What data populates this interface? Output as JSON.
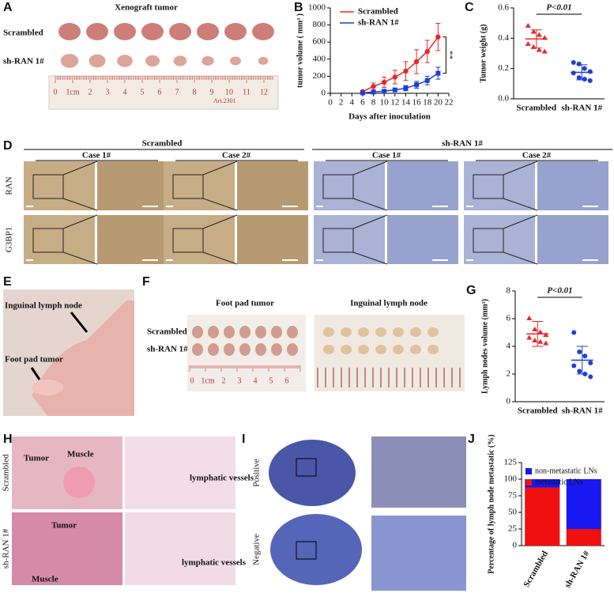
{
  "panels": {
    "A": {
      "label": "A",
      "title": "Xenograft tumor",
      "rows": [
        "Scrambled",
        "sh-RAN 1#"
      ],
      "ruler": [
        "0",
        "1cm",
        "2",
        "3",
        "4",
        "5",
        "6",
        "7",
        "8",
        "9",
        "10",
        "11",
        "12"
      ],
      "ruler_brand": "Art.2301"
    },
    "D": {
      "label": "D",
      "groups": [
        "Scrambled",
        "sh-RAN 1#"
      ],
      "cases": [
        "Case 1#",
        "Case 2#",
        "Case 1#",
        "Case 2#"
      ],
      "rows": [
        "RAN",
        "G3BP1"
      ]
    },
    "E": {
      "label": "E",
      "annotations": [
        "Inguinal lymph node",
        "Foot pad tumor"
      ]
    },
    "F": {
      "label": "F",
      "columns": [
        "Foot pad tumor",
        "Inguinal lymph node"
      ],
      "rows": [
        "Scrambled",
        "sh-RAN 1#"
      ],
      "ruler": [
        "0",
        "1cm",
        "2",
        "3",
        "4",
        "5",
        "6"
      ]
    },
    "H": {
      "label": "H",
      "rows": [
        "Scrambled",
        "sh-RAN 1#"
      ],
      "annotations": [
        "Tumor",
        "Muscle",
        "lymphatic vessels",
        "Tumor",
        "Muscle",
        "lymphatic vessels"
      ]
    },
    "I": {
      "label": "I",
      "rows": [
        "Positive",
        "Negative"
      ]
    }
  },
  "chart_data": [
    {
      "type": "line",
      "label": "B",
      "xlabel": "Days after inoculation",
      "ylabel": "tumor volume ( mm³ )",
      "x": [
        6,
        8,
        10,
        12,
        14,
        16,
        18,
        20
      ],
      "series": [
        {
          "name": "Scrambled",
          "color": "#e8262a",
          "marker": "circle",
          "values": [
            20,
            80,
            130,
            190,
            260,
            370,
            490,
            660
          ],
          "errors": [
            10,
            40,
            60,
            80,
            110,
            140,
            130,
            160
          ]
        },
        {
          "name": "sh-RAN 1#",
          "color": "#1f3fd6",
          "marker": "square",
          "values": [
            5,
            15,
            25,
            40,
            60,
            100,
            150,
            235
          ],
          "errors": [
            5,
            10,
            15,
            20,
            30,
            40,
            50,
            70
          ]
        }
      ],
      "xlim": [
        0,
        22
      ],
      "xticks": [
        0,
        2,
        4,
        6,
        8,
        10,
        12,
        14,
        16,
        18,
        20,
        22
      ],
      "ylim": [
        0,
        1000
      ],
      "yticks": [
        0,
        200,
        400,
        600,
        800,
        1000
      ],
      "annotation": "**"
    },
    {
      "type": "dot",
      "label": "C",
      "ylabel": "Tumor weight (g)",
      "categories": [
        "Scrambled",
        "sh-RAN 1#"
      ],
      "groups": [
        {
          "color": "#e8262a",
          "values": [
            0.48,
            0.44,
            0.42,
            0.4,
            0.36,
            0.34,
            0.32,
            0.31
          ],
          "mean": 0.395,
          "sd": 0.06
        },
        {
          "color": "#1f3fd6",
          "values": [
            0.24,
            0.23,
            0.2,
            0.18,
            0.17,
            0.14,
            0.13,
            0.12
          ],
          "mean": 0.175,
          "sd": 0.05
        }
      ],
      "ylim": [
        0,
        0.6
      ],
      "yticks": [
        {
          "value": 0,
          "label": "0.0"
        },
        0.2,
        0.4,
        0.6
      ],
      "annotation": "P<0.01"
    },
    {
      "type": "dot",
      "label": "G",
      "ylabel": "Lymph nodes volume (mm³)",
      "categories": [
        "Scrambled",
        "sh-RAN 1#"
      ],
      "groups": [
        {
          "color": "#e8262a",
          "values": [
            6.0,
            5.2,
            5.0,
            4.8,
            4.6,
            4.4,
            4.3,
            4.2
          ],
          "mean": 4.9,
          "sd": 0.9
        },
        {
          "color": "#1f3fd6",
          "values": [
            5.0,
            3.6,
            3.3,
            2.8,
            2.6,
            2.2,
            2.0,
            1.8
          ],
          "mean": 3.0,
          "sd": 1.0
        }
      ],
      "ylim": [
        0,
        8
      ],
      "yticks": [
        0,
        2,
        4,
        6,
        8
      ],
      "annotation": "P<0.01"
    },
    {
      "type": "stacked_bar",
      "label": "J",
      "ylabel": "Percentage of lymph node metastatic (%)",
      "categories": [
        "Scrambled",
        "sh-RAN 1#"
      ],
      "series": [
        {
          "name": "metastatic LNs",
          "color": "#f01010",
          "values": [
            87.5,
            25
          ]
        },
        {
          "name": "non-metastatic LNs",
          "color": "#1818f0",
          "values": [
            12.5,
            75
          ]
        }
      ],
      "ylim": [
        0,
        125
      ],
      "yticks": [
        0,
        25,
        50,
        75,
        100,
        125
      ]
    }
  ]
}
